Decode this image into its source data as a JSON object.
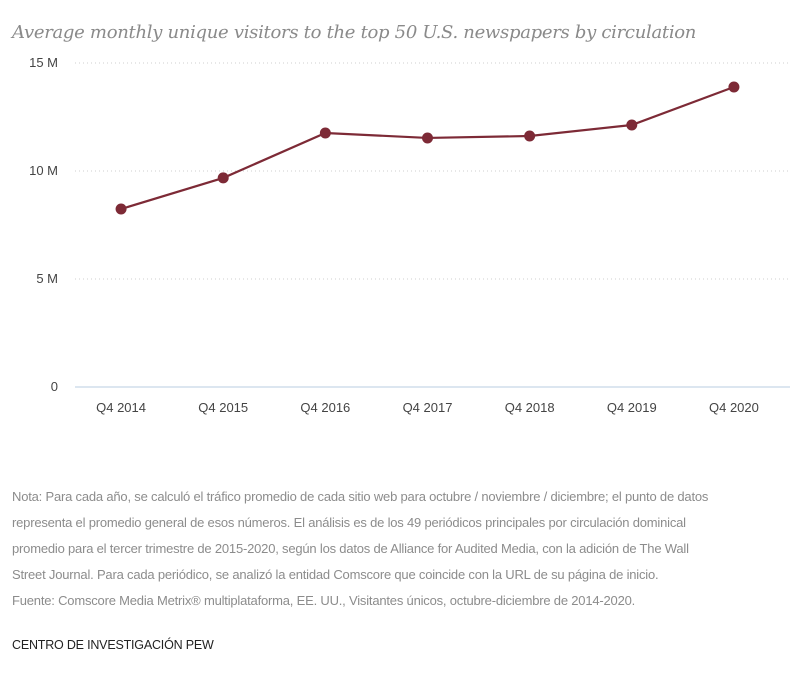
{
  "chart_data": {
    "type": "line",
    "title": "Average monthly unique visitors to the top 50 U.S. newspapers by circulation",
    "categories": [
      "Q4 2014",
      "Q4 2015",
      "Q4 2016",
      "Q4 2017",
      "Q4 2018",
      "Q4 2019",
      "Q4 2020"
    ],
    "series": [
      {
        "name": "Average monthly unique visitors (millions)",
        "values": [
          8.24,
          9.68,
          11.76,
          11.53,
          11.62,
          12.13,
          13.89
        ],
        "color": "#7d2a36"
      }
    ],
    "yticks": [
      {
        "value": 0,
        "label": "0"
      },
      {
        "value": 5,
        "label": "5 M"
      },
      {
        "value": 10,
        "label": "10 M"
      },
      {
        "value": 15,
        "label": "15 M"
      }
    ],
    "ylim": [
      0,
      15
    ],
    "xlabel": "",
    "ylabel": "",
    "grid": true
  },
  "notes": [
    "Nota: Para cada año, se calculó el tráfico promedio de cada sitio web para octubre / noviembre / diciembre; el punto de datos",
    "representa el promedio general de esos números. El análisis es de los 49 periódicos principales por circulación dominical",
    "promedio para el tercer trimestre de 2015-2020, según los datos de Alliance for Audited Media, con la adición de The Wall",
    "Street Journal. Para cada periódico, se analizó la entidad Comscore que coincide con la URL de su página de inicio.",
    "Fuente: Comscore Media Metrix® multiplataforma, EE. UU., Visitantes únicos, octubre-diciembre de 2014-2020."
  ],
  "credit": "CENTRO DE INVESTIGACIÓN PEW"
}
